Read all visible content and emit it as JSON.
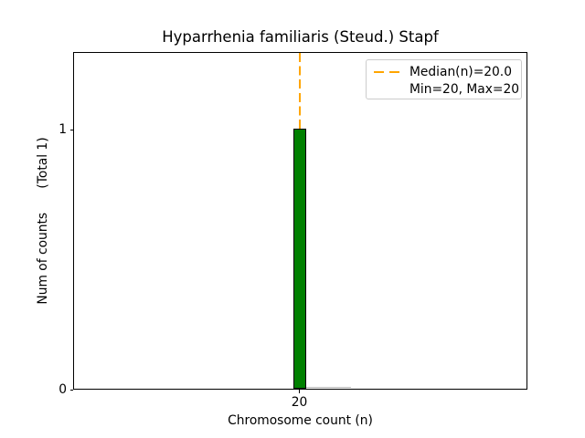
{
  "chart_data": {
    "type": "bar",
    "title": "Hyparrhenia familiaris (Steud.) Stapf",
    "xlabel": "Chromosome count (n)",
    "ylabel": "Num of counts      (Total 1)",
    "categories": [
      20
    ],
    "values": [
      1
    ],
    "x_tick_labels": [
      "20"
    ],
    "y_tick_labels": {
      "zero": "0",
      "one": "1"
    },
    "ylim": [
      0,
      1.3
    ],
    "median_n": 20.0,
    "min_n": 20,
    "max_n": 20,
    "total_counts": 1,
    "grid": false,
    "legend": {
      "position": "upper right",
      "entries": {
        "median": "Median(n)=20.0",
        "minmax": "Min=20, Max=20"
      }
    },
    "colors": {
      "bar_fill": "#008000",
      "bar_edge": "#000000",
      "median_line": "#FFA500",
      "zero_bar_edge": "#bdbdbd",
      "legend_border": "#cccccc",
      "text": "#000000",
      "background": "#ffffff"
    }
  }
}
